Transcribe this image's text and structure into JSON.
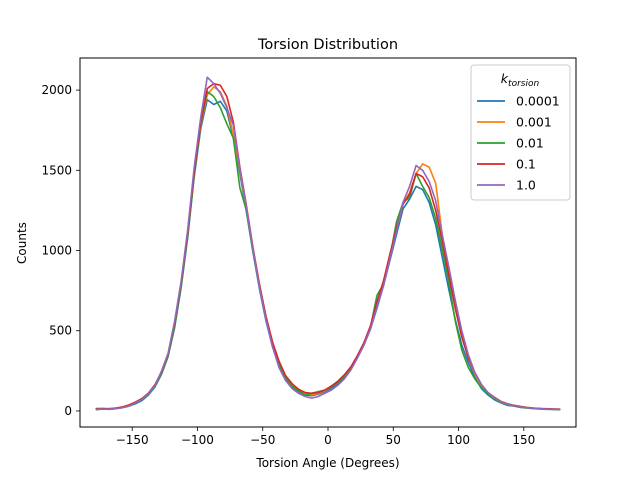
{
  "chart_data": {
    "type": "line",
    "title": "Torsion Distribution",
    "xlabel": "Torsion Angle (Degrees)",
    "ylabel": "Counts",
    "xlim": [
      -190,
      190
    ],
    "ylim": [
      -100,
      2200
    ],
    "xticks": [
      -150,
      -100,
      -50,
      0,
      50,
      100,
      150
    ],
    "xtick_labels": [
      "−150",
      "−100",
      "−50",
      "0",
      "50",
      "100",
      "150"
    ],
    "yticks": [
      0,
      500,
      1000,
      1500,
      2000
    ],
    "ytick_labels": [
      "0",
      "500",
      "1000",
      "1500",
      "2000"
    ],
    "grid": false,
    "legend": {
      "position": "top-right",
      "title_base": "k",
      "title_sub": "torsion"
    },
    "x": [
      -177.5,
      -172.5,
      -167.5,
      -162.5,
      -157.5,
      -152.5,
      -147.5,
      -142.5,
      -137.5,
      -132.5,
      -127.5,
      -122.5,
      -117.5,
      -112.5,
      -107.5,
      -102.5,
      -97.5,
      -92.5,
      -87.5,
      -82.5,
      -77.5,
      -72.5,
      -67.5,
      -62.5,
      -57.5,
      -52.5,
      -47.5,
      -42.5,
      -37.5,
      -32.5,
      -27.5,
      -22.5,
      -17.5,
      -12.5,
      -7.5,
      -2.5,
      2.5,
      7.5,
      12.5,
      17.5,
      22.5,
      27.5,
      32.5,
      37.5,
      42.5,
      47.5,
      52.5,
      57.5,
      62.5,
      67.5,
      72.5,
      77.5,
      82.5,
      87.5,
      92.5,
      97.5,
      102.5,
      107.5,
      112.5,
      117.5,
      122.5,
      127.5,
      132.5,
      137.5,
      142.5,
      147.5,
      152.5,
      157.5,
      162.5,
      167.5,
      172.5,
      177.5
    ],
    "series": [
      {
        "name": "0.0001",
        "color": "#1f77b4",
        "values": [
          10,
          15,
          10,
          15,
          20,
          30,
          45,
          65,
          100,
          150,
          230,
          340,
          520,
          770,
          1080,
          1460,
          1760,
          1940,
          1910,
          1930,
          1870,
          1700,
          1480,
          1240,
          990,
          760,
          560,
          400,
          280,
          200,
          150,
          120,
          100,
          95,
          105,
          120,
          140,
          170,
          210,
          260,
          330,
          410,
          510,
          640,
          780,
          940,
          1100,
          1260,
          1320,
          1400,
          1380,
          1300,
          1160,
          960,
          760,
          570,
          410,
          300,
          210,
          140,
          100,
          70,
          50,
          35,
          30,
          25,
          20,
          15,
          15,
          12,
          10,
          10
        ]
      },
      {
        "name": "0.001",
        "color": "#ff7f0e",
        "values": [
          12,
          12,
          14,
          16,
          22,
          35,
          55,
          75,
          110,
          160,
          240,
          350,
          540,
          790,
          1100,
          1480,
          1780,
          1970,
          2020,
          1990,
          1900,
          1720,
          1500,
          1260,
          1010,
          780,
          580,
          420,
          300,
          210,
          160,
          130,
          110,
          100,
          110,
          125,
          150,
          180,
          220,
          270,
          340,
          420,
          520,
          660,
          800,
          960,
          1130,
          1290,
          1360,
          1480,
          1540,
          1520,
          1420,
          1100,
          870,
          660,
          480,
          330,
          230,
          160,
          110,
          80,
          55,
          40,
          30,
          25,
          20,
          15,
          15,
          12,
          10,
          10
        ]
      },
      {
        "name": "0.01",
        "color": "#2ca02c",
        "values": [
          8,
          12,
          10,
          14,
          22,
          32,
          50,
          70,
          105,
          155,
          235,
          345,
          530,
          780,
          1090,
          1470,
          1790,
          1990,
          1960,
          1890,
          1790,
          1700,
          1390,
          1250,
          1000,
          770,
          570,
          410,
          290,
          205,
          155,
          125,
          100,
          110,
          120,
          130,
          150,
          180,
          215,
          265,
          340,
          420,
          520,
          720,
          790,
          960,
          1180,
          1300,
          1330,
          1480,
          1400,
          1330,
          1200,
          1010,
          810,
          560,
          380,
          270,
          200,
          145,
          105,
          75,
          52,
          38,
          30,
          22,
          18,
          15,
          12,
          10,
          9,
          8
        ]
      },
      {
        "name": "0.1",
        "color": "#d62728",
        "values": [
          15,
          15,
          14,
          18,
          25,
          38,
          55,
          78,
          112,
          165,
          245,
          355,
          550,
          800,
          1110,
          1490,
          1800,
          2010,
          2040,
          2030,
          1960,
          1800,
          1520,
          1280,
          1020,
          790,
          590,
          430,
          310,
          220,
          170,
          135,
          115,
          110,
          115,
          130,
          155,
          185,
          225,
          275,
          345,
          425,
          530,
          680,
          810,
          980,
          1140,
          1290,
          1350,
          1480,
          1460,
          1390,
          1250,
          1060,
          850,
          640,
          460,
          330,
          240,
          165,
          115,
          85,
          60,
          45,
          35,
          28,
          22,
          18,
          15,
          14,
          13,
          12
        ]
      },
      {
        "name": "1.0",
        "color": "#9467bd",
        "values": [
          10,
          12,
          12,
          15,
          20,
          32,
          50,
          72,
          108,
          158,
          250,
          360,
          560,
          810,
          1130,
          1520,
          1830,
          2080,
          2040,
          1980,
          1890,
          1780,
          1510,
          1270,
          1010,
          770,
          570,
          400,
          270,
          190,
          140,
          110,
          90,
          80,
          90,
          110,
          130,
          160,
          200,
          255,
          330,
          410,
          510,
          650,
          780,
          950,
          1120,
          1300,
          1400,
          1530,
          1500,
          1430,
          1310,
          1100,
          900,
          690,
          500,
          350,
          240,
          165,
          115,
          82,
          58,
          42,
          32,
          25,
          20,
          16,
          14,
          12,
          10,
          10
        ]
      }
    ]
  }
}
